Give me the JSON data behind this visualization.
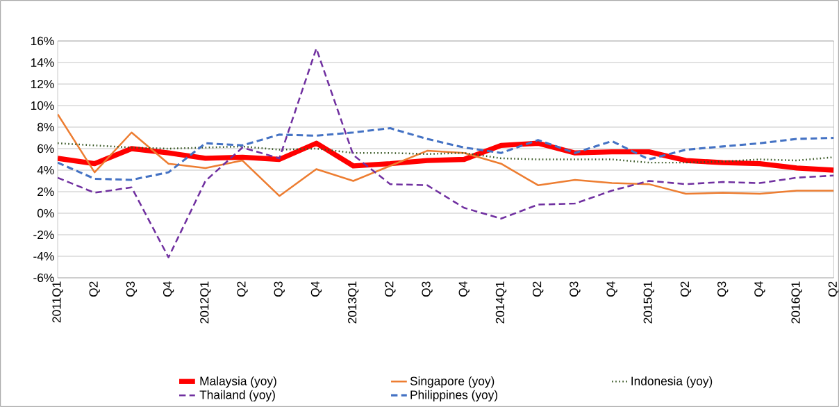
{
  "chart_data": {
    "type": "line",
    "categories": [
      "2011Q1",
      "Q2",
      "Q3",
      "Q4",
      "2012Q1",
      "Q2",
      "Q3",
      "Q4",
      "2013Q1",
      "Q2",
      "Q3",
      "Q4",
      "2014Q1",
      "Q2",
      "Q3",
      "Q4",
      "2015Q1",
      "Q2",
      "Q3",
      "Q4",
      "2016Q1",
      "Q2"
    ],
    "series": [
      {
        "name": "Malaysia (yoy)",
        "color": "#ff0000",
        "line_style": "solid",
        "values": [
          5.1,
          4.6,
          6.0,
          5.6,
          5.1,
          5.2,
          5.0,
          6.5,
          4.4,
          4.6,
          4.9,
          5.0,
          6.3,
          6.5,
          5.6,
          5.7,
          5.7,
          4.9,
          4.7,
          4.6,
          4.2,
          4.0
        ]
      },
      {
        "name": "Singapore (yoy)",
        "color": "#ed7d31",
        "line_style": "solid",
        "values": [
          9.2,
          3.8,
          7.5,
          4.6,
          4.2,
          4.9,
          1.6,
          4.1,
          3.0,
          4.4,
          5.8,
          5.6,
          4.6,
          2.6,
          3.1,
          2.8,
          2.7,
          1.8,
          1.9,
          1.8,
          2.1,
          2.1
        ]
      },
      {
        "name": "Indonesia (yoy)",
        "color": "#375623",
        "line_style": "dotted",
        "values": [
          6.5,
          6.3,
          6.1,
          6.0,
          6.1,
          6.2,
          5.9,
          6.0,
          5.6,
          5.6,
          5.5,
          5.6,
          5.1,
          5.0,
          5.0,
          5.0,
          4.7,
          4.7,
          4.8,
          5.0,
          4.9,
          5.2
        ]
      },
      {
        "name": "Thailand (yoy)",
        "color": "#7030a0",
        "line_style": "dashed",
        "values": [
          3.3,
          1.9,
          2.4,
          -4.1,
          3.0,
          6.1,
          5.1,
          15.3,
          5.4,
          2.7,
          2.6,
          0.5,
          -0.5,
          0.8,
          0.9,
          2.1,
          3.0,
          2.7,
          2.9,
          2.8,
          3.3,
          3.5
        ]
      },
      {
        "name": "Philippines (yoy)",
        "color": "#4472c4",
        "line_style": "dashed",
        "values": [
          4.7,
          3.2,
          3.1,
          3.8,
          6.5,
          6.3,
          7.3,
          7.2,
          7.5,
          7.9,
          6.9,
          6.1,
          5.6,
          6.8,
          5.6,
          6.7,
          5.0,
          5.9,
          6.2,
          6.5,
          6.9,
          7.0
        ]
      }
    ],
    "ylim": [
      -6,
      16
    ],
    "yticks": [
      {
        "value": -6,
        "label": "-6%"
      },
      {
        "value": -4,
        "label": "-4%"
      },
      {
        "value": -2,
        "label": "-2%"
      },
      {
        "value": 0,
        "label": "0%"
      },
      {
        "value": 2,
        "label": "2%"
      },
      {
        "value": 4,
        "label": "4%"
      },
      {
        "value": 6,
        "label": "6%"
      },
      {
        "value": 8,
        "label": "8%"
      },
      {
        "value": 10,
        "label": "10%"
      },
      {
        "value": 12,
        "label": "12%"
      },
      {
        "value": 14,
        "label": "14%"
      },
      {
        "value": 16,
        "label": "16%"
      }
    ],
    "grid": "y",
    "legend": "bottom",
    "marker": "none"
  }
}
